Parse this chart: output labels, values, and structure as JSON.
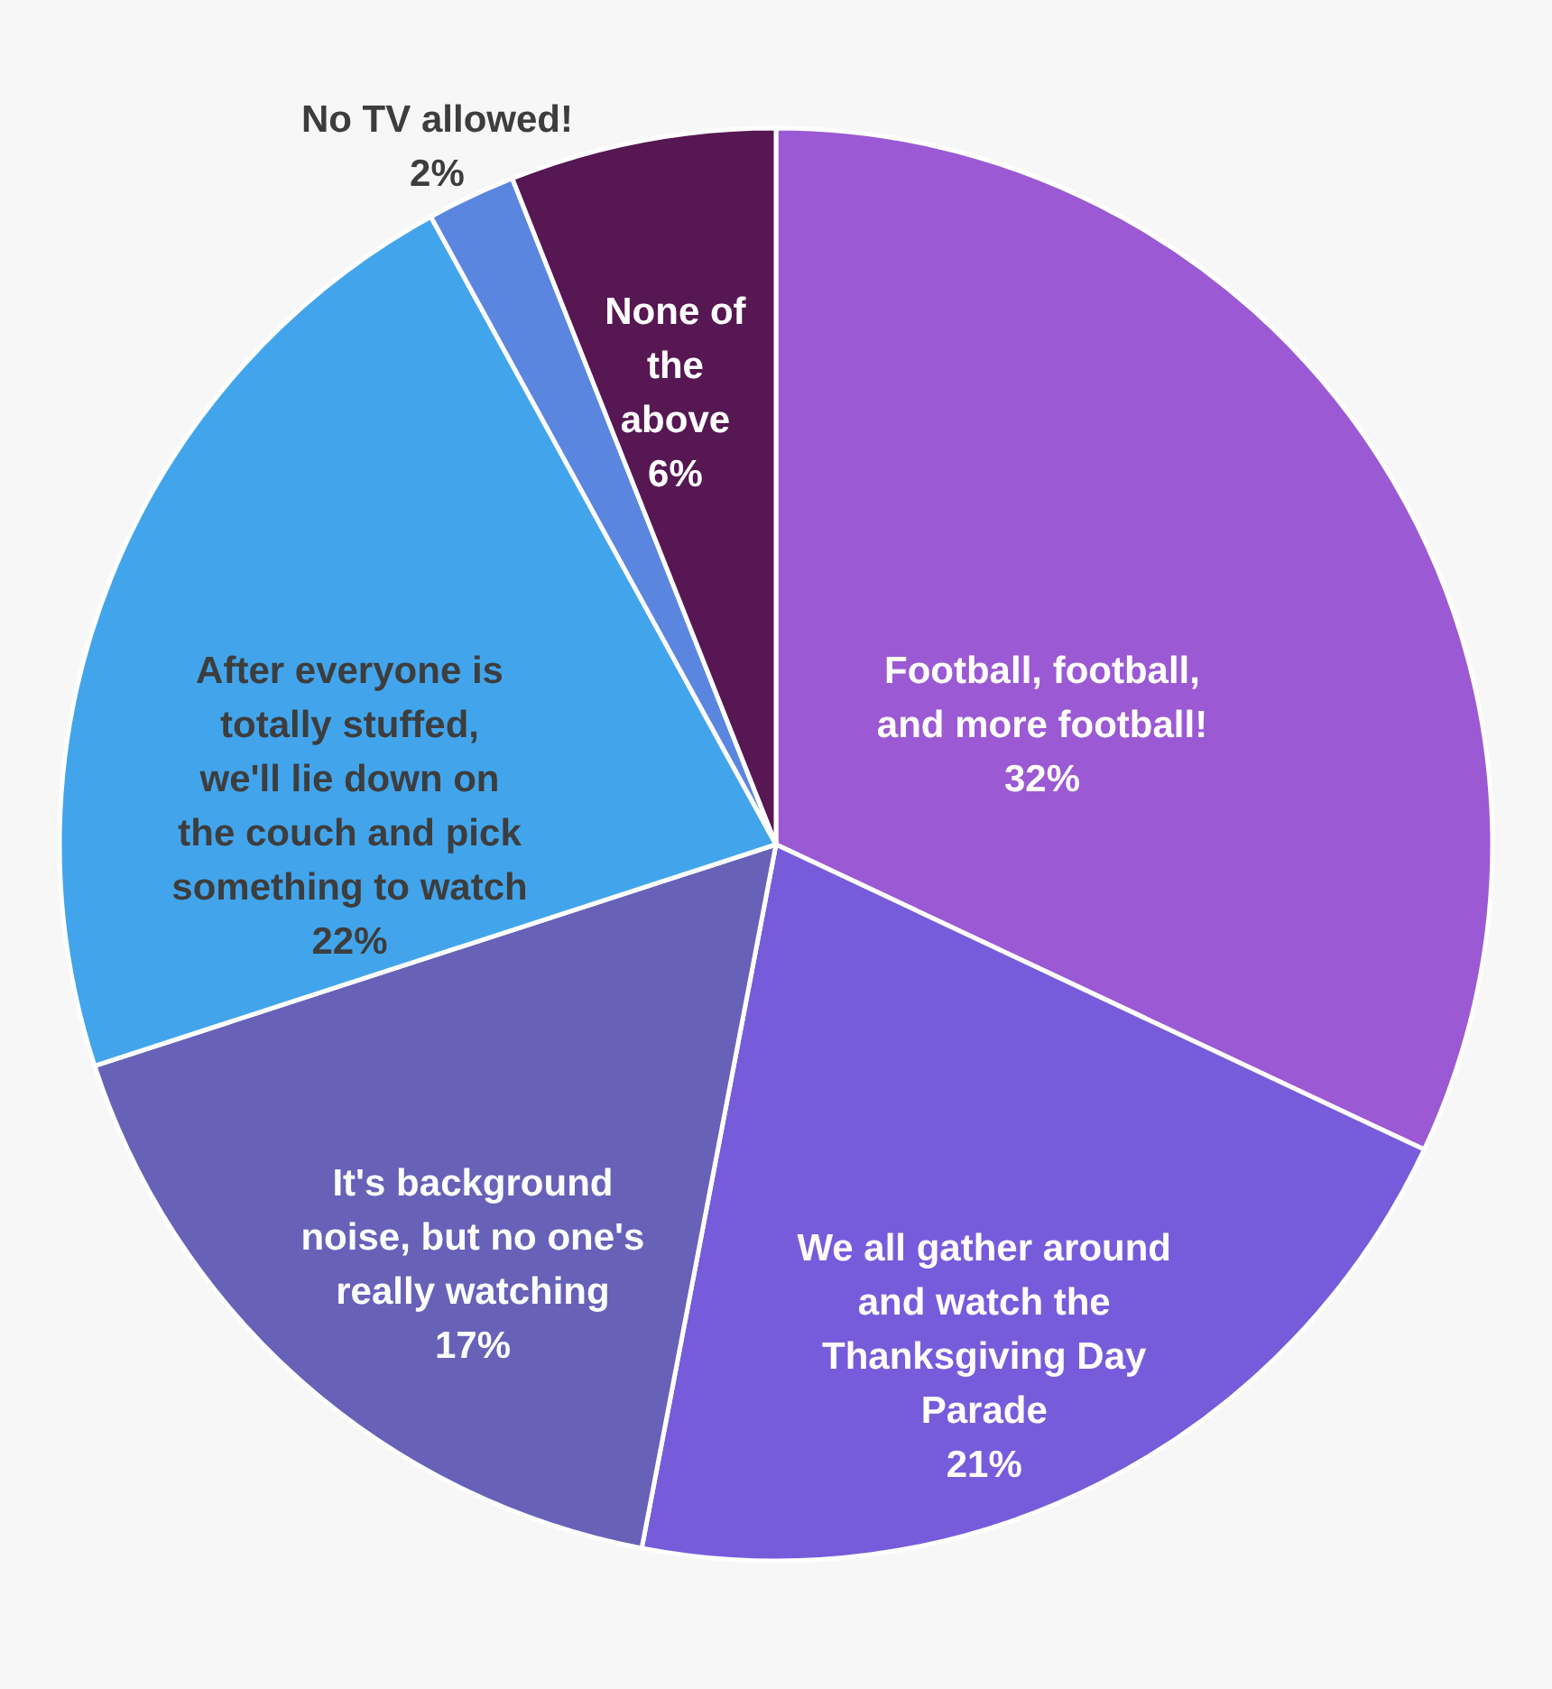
{
  "chart_data": {
    "type": "pie",
    "categories": [
      "Football, football, and more football!",
      "We all gather around and watch the Thanksgiving Day Parade",
      "It's background noise, but no one's really watching",
      "After everyone is totally stuffed, we'll lie down on the couch and pick something to watch",
      "No TV allowed!",
      "None of the above"
    ],
    "values": [
      32,
      21,
      17,
      22,
      2,
      6
    ],
    "colors": [
      "#9b59d4",
      "#765cdb",
      "#6861b8",
      "#42a5ec",
      "#5b86e0",
      "#561753"
    ],
    "value_labels": [
      "32%",
      "21%",
      "17%",
      "22%",
      "2%",
      "6%"
    ],
    "legend": false
  }
}
